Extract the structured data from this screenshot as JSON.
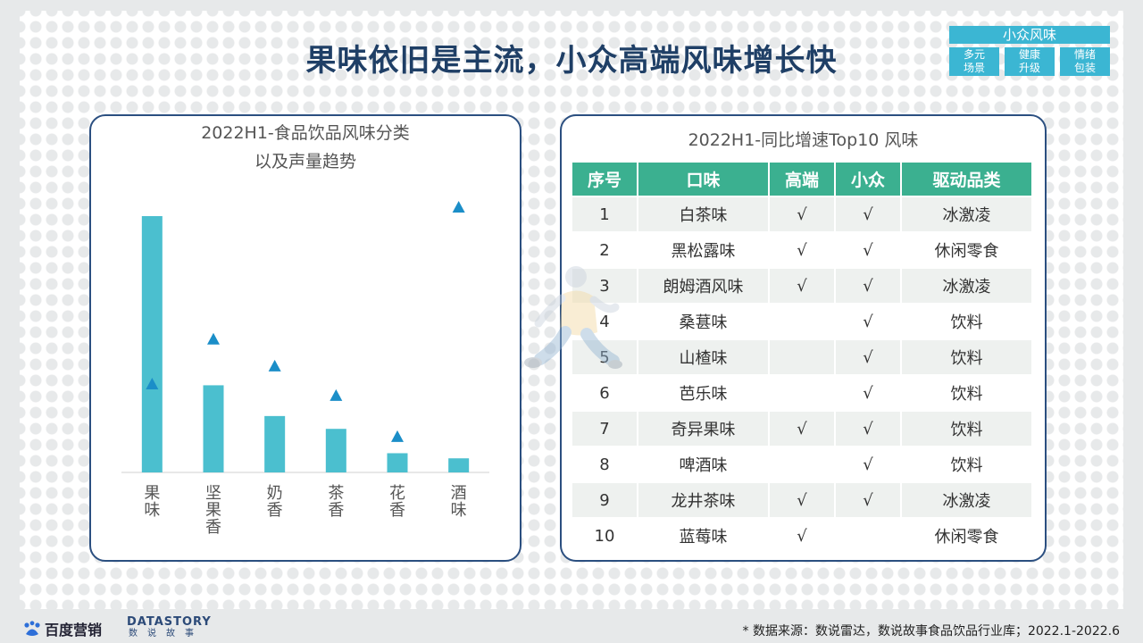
{
  "title": "果味依旧是主流，小众高端风味增长快",
  "tag": {
    "head": "小众风味",
    "cells": [
      "多元\n场景",
      "健康\n升级",
      "情绪\n包装"
    ]
  },
  "left_panel": {
    "title_line1": "2022H1-食品饮品风味分类",
    "title_line2": "以及声量趋势"
  },
  "chart_data": {
    "type": "bar",
    "categories": [
      "果味",
      "坚果香",
      "奶香",
      "茶香",
      "花香",
      "酒味"
    ],
    "series": [
      {
        "marker": "bar",
        "values": [
          100,
          34,
          22,
          17,
          7.5,
          5.5
        ]
      },
      {
        "marker": "triangle",
        "values": [
          34.5,
          52,
          41.5,
          30,
          14,
          103.5
        ]
      }
    ],
    "ylim": [
      0,
      110
    ],
    "colors": {
      "bar": "#4bbfcf",
      "triangle": "#1b8ec8"
    }
  },
  "right_panel": {
    "title": "2022H1-同比增速Top10 风味",
    "headers": [
      "序号",
      "口味",
      "高端",
      "小众",
      "驱动品类"
    ],
    "rows": [
      [
        "1",
        "白茶味",
        "√",
        "√",
        "冰激凌"
      ],
      [
        "2",
        "黑松露味",
        "√",
        "√",
        "休闲零食"
      ],
      [
        "3",
        "朗姆酒风味",
        "√",
        "√",
        "冰激凌"
      ],
      [
        "4",
        "桑葚味",
        "",
        "√",
        "饮料"
      ],
      [
        "5",
        "山楂味",
        "",
        "√",
        "饮料"
      ],
      [
        "6",
        "芭乐味",
        "",
        "√",
        "饮料"
      ],
      [
        "7",
        "奇异果味",
        "√",
        "√",
        "饮料"
      ],
      [
        "8",
        "啤酒味",
        "",
        "√",
        "饮料"
      ],
      [
        "9",
        "龙井茶味",
        "√",
        "√",
        "冰激凌"
      ],
      [
        "10",
        "蓝莓味",
        "√",
        "",
        "休闲零食"
      ]
    ]
  },
  "footer": {
    "logo1": "百度营销",
    "logo2_top": "DATASTORY",
    "logo2_bottom": "数说故事",
    "source": "* 数据来源：数说雷达，数说故事食品饮品行业库；2022.1-2022.6"
  }
}
